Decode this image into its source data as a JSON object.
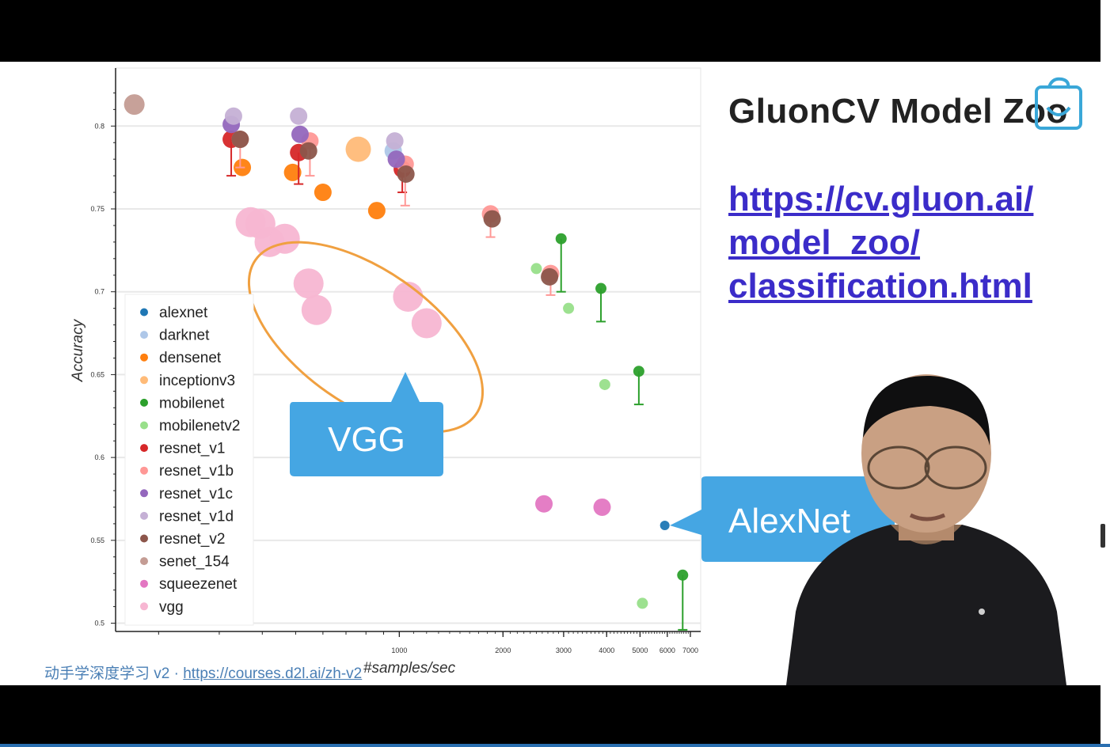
{
  "slide": {
    "title": "GluonCV Model Zoo",
    "link_lines": [
      "https://cv.gluon.ai/",
      "model_zoo/",
      "classification.html"
    ],
    "footer_prefix": "动手学深度学习 v2 · ",
    "footer_link": "https://courses.d2l.ai/zh-v2"
  },
  "callouts": {
    "vgg": "VGG",
    "alexnet": "AlexNet"
  },
  "colors": {
    "alexnet": "#1f77b4",
    "darknet": "#aec7e8",
    "densenet": "#ff7f0e",
    "inceptionv3": "#ffbb78",
    "mobilenet": "#2ca02c",
    "mobilenetv2": "#98df8a",
    "resnet_v1": "#d62728",
    "resnet_v1b": "#ff9896",
    "resnet_v1c": "#9467bd",
    "resnet_v1d": "#c5b0d5",
    "resnet_v2": "#8c564b",
    "senet_154": "#c49c94",
    "squeezenet": "#e377c2",
    "vgg": "#f7b6d2",
    "callout": "#45a6e3",
    "ellipse": "#f0a040"
  },
  "chart_data": {
    "type": "scatter",
    "xlabel": "#samples/sec",
    "ylabel": "Accuracy",
    "xscale": "log",
    "xlim": [
      150,
      7500
    ],
    "ylim": [
      0.495,
      0.835
    ],
    "grid": true,
    "legend_position": "bottom-left",
    "x_ticks": [
      1000,
      2000,
      3000,
      4000,
      5000,
      6000,
      7000
    ],
    "x_tick_labels": [
      "1000",
      "2000",
      "3000",
      "4000",
      "5000",
      "6000",
      "7000"
    ],
    "y_ticks": [
      0.5,
      0.55,
      0.6,
      0.65,
      0.7,
      0.75,
      0.8
    ],
    "y_tick_labels": [
      "0.5",
      "0.55",
      "0.6",
      "0.65",
      "0.7",
      "0.75",
      "0.8"
    ],
    "legend": [
      "alexnet",
      "darknet",
      "densenet",
      "inceptionv3",
      "mobilenet",
      "mobilenetv2",
      "resnet_v1",
      "resnet_v1b",
      "resnet_v1c",
      "resnet_v1d",
      "resnet_v2",
      "senet_154",
      "squeezenet",
      "vgg"
    ],
    "series": [
      {
        "name": "alexnet",
        "points": [
          [
            5900,
            0.559
          ]
        ]
      },
      {
        "name": "darknet",
        "points": [
          [
            960,
            0.785
          ]
        ]
      },
      {
        "name": "densenet",
        "points": [
          [
            350,
            0.775
          ],
          [
            490,
            0.772
          ],
          [
            600,
            0.76
          ],
          [
            860,
            0.749
          ]
        ]
      },
      {
        "name": "inceptionv3",
        "points": [
          [
            760,
            0.786
          ]
        ]
      },
      {
        "name": "mobilenet",
        "points": [
          [
            2950,
            0.732,
            0.7
          ],
          [
            3850,
            0.702,
            0.682
          ],
          [
            4960,
            0.652,
            0.632
          ],
          [
            6650,
            0.529,
            0.496
          ]
        ]
      },
      {
        "name": "mobilenetv2",
        "points": [
          [
            2500,
            0.714
          ],
          [
            3100,
            0.69
          ],
          [
            3950,
            0.644
          ],
          [
            5080,
            0.512
          ]
        ]
      },
      {
        "name": "resnet_v1",
        "points": [
          [
            325,
            0.792,
            0.77
          ],
          [
            510,
            0.784,
            0.765
          ],
          [
            1020,
            0.774,
            0.76
          ]
        ]
      },
      {
        "name": "resnet_v1b",
        "points": [
          [
            345,
            0.792,
            0.775
          ],
          [
            550,
            0.791,
            0.77
          ],
          [
            1040,
            0.777,
            0.752
          ],
          [
            1840,
            0.747,
            0.733
          ],
          [
            2750,
            0.711,
            0.698
          ]
        ]
      },
      {
        "name": "resnet_v1c",
        "points": [
          [
            325,
            0.801
          ],
          [
            515,
            0.795
          ],
          [
            980,
            0.78
          ]
        ]
      },
      {
        "name": "resnet_v1d",
        "points": [
          [
            330,
            0.806
          ],
          [
            510,
            0.806
          ],
          [
            970,
            0.791
          ]
        ]
      },
      {
        "name": "resnet_v2",
        "points": [
          [
            345,
            0.792
          ],
          [
            545,
            0.785
          ],
          [
            1045,
            0.771
          ],
          [
            1860,
            0.744
          ],
          [
            2730,
            0.709
          ]
        ]
      },
      {
        "name": "senet_154",
        "points": [
          [
            170,
            0.813
          ]
        ]
      },
      {
        "name": "squeezenet",
        "points": [
          [
            2630,
            0.572
          ],
          [
            3880,
            0.57
          ]
        ]
      },
      {
        "name": "vgg",
        "points": [
          [
            370,
            0.742
          ],
          [
            395,
            0.741
          ],
          [
            420,
            0.73
          ],
          [
            465,
            0.732
          ],
          [
            545,
            0.705
          ],
          [
            575,
            0.689
          ],
          [
            1060,
            0.697
          ],
          [
            1200,
            0.681
          ]
        ]
      }
    ]
  }
}
